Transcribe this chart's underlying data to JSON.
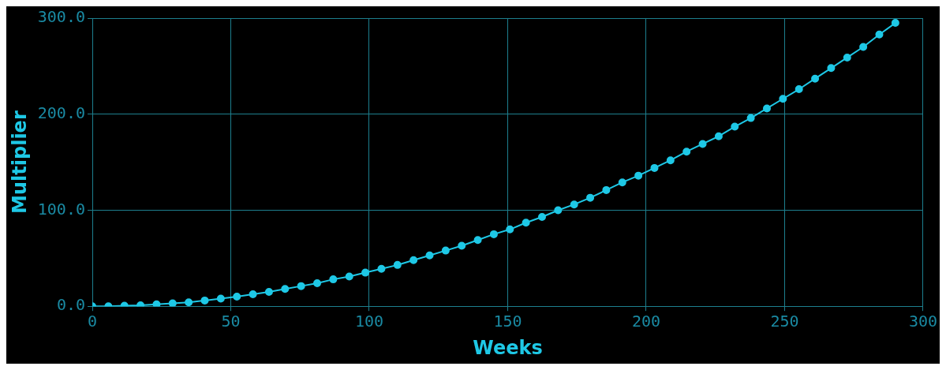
{
  "chart_data": {
    "type": "line",
    "xlabel": "Weeks",
    "ylabel": "Multiplier",
    "x": [
      0,
      5.8,
      11.6,
      17.4,
      23.2,
      29,
      34.8,
      40.6,
      46.4,
      52.2,
      58,
      63.8,
      69.6,
      75.4,
      81.2,
      87,
      92.8,
      98.6,
      104.4,
      110.2,
      116,
      121.8,
      127.6,
      133.4,
      139.2,
      145,
      150.8,
      156.6,
      162.4,
      168.2,
      174,
      179.8,
      185.6,
      191.4,
      197.2,
      203,
      208.8,
      214.6,
      220.4,
      226.2,
      232,
      237.8,
      243.6,
      249.4,
      255.2,
      261,
      266.8,
      272.6,
      278.4,
      284.2,
      290
    ],
    "series": [
      {
        "color": "#1ec8e6",
        "values": [
          0,
          0,
          0.5,
          1,
          2,
          3,
          4,
          6,
          8,
          10,
          12.5,
          15,
          18,
          21,
          24,
          28,
          31,
          35,
          39,
          43,
          48,
          53,
          58,
          63,
          69,
          75,
          80,
          87,
          93,
          100,
          106,
          113,
          121,
          129,
          136,
          144,
          152,
          161,
          169,
          177,
          187,
          196,
          206,
          216,
          226,
          237,
          248,
          259,
          270,
          283,
          295
        ]
      }
    ],
    "xlim": [
      0,
      300
    ],
    "xticks": [
      0,
      50,
      100,
      150,
      200,
      250,
      300
    ],
    "ylim": [
      0,
      300
    ],
    "yticks": [
      {
        "value": 0,
        "label": "0.0"
      },
      {
        "value": 100,
        "label": "100.0"
      },
      {
        "value": 200,
        "label": "200.0"
      },
      {
        "value": 300,
        "label": "300.0"
      }
    ],
    "grid": true,
    "marker": "circle",
    "line_style": "solid",
    "legend": false
  }
}
